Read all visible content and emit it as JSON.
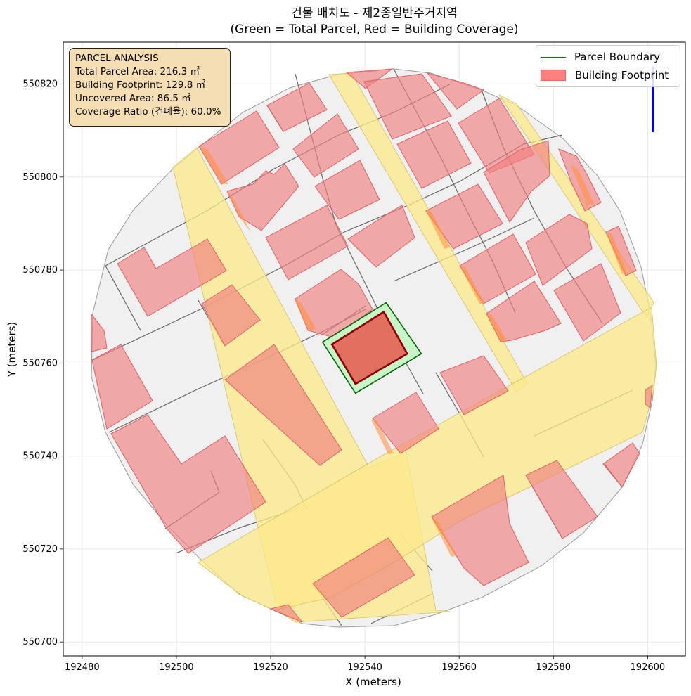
{
  "title": "건물 배치도 - 제2종일반주거지역",
  "subtitle": "(Green = Total Parcel, Red = Building Coverage)",
  "info": {
    "heading": "PARCEL ANALYSIS",
    "total": "Total Parcel Area: 216.3 ㎡",
    "footprint": "Building Footprint: 129.8 ㎡",
    "uncovered": "Uncovered Area: 86.5 ㎡",
    "ratio": "Coverage Ratio (건폐율): 60.0%"
  },
  "legend": {
    "parcel": "Parcel Boundary",
    "building": "Building Footprint"
  },
  "axes": {
    "xlabel": "X (meters)",
    "ylabel": "Y (meters)",
    "xlim": [
      192476,
      192608
    ],
    "ylim": [
      550697,
      550829
    ],
    "xticks": [
      192480,
      192500,
      192520,
      192540,
      192560,
      192580,
      192600
    ],
    "yticks": [
      550700,
      550720,
      550740,
      550760,
      550780,
      550800,
      550820
    ],
    "grid": true
  },
  "colors": {
    "parcel_edge": "#006400",
    "parcel_fill": "#c8f5c8",
    "building_fill": "#e07060",
    "building_edge": "#8b0000",
    "context_building": "#f08080",
    "road": "#fde98a",
    "ground": "#f0f0f0",
    "north_arrow": "#0000ff"
  },
  "map": {
    "north_arrow": "N",
    "target_parcel": [
      [
        192531,
        550764.5
      ],
      [
        192544.5,
        550773
      ],
      [
        192552,
        550762
      ],
      [
        192538,
        550753.5
      ]
    ],
    "target_building": [
      [
        192533,
        550764
      ],
      [
        192544,
        550771
      ],
      [
        192549,
        550762
      ],
      [
        192538,
        550755.5
      ]
    ]
  }
}
